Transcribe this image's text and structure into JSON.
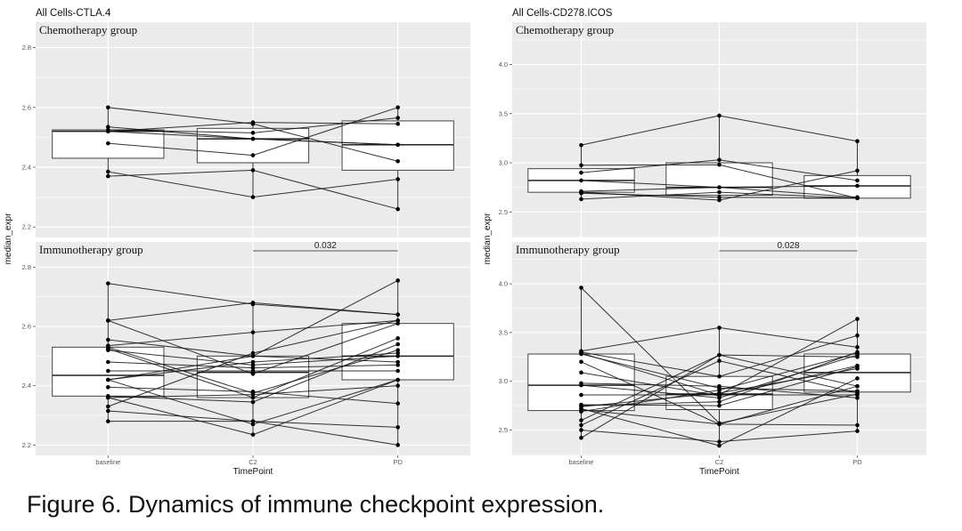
{
  "caption": "Figure 6. Dynamics of immune checkpoint expression.",
  "chart_data": [
    {
      "type": "boxplot-paired",
      "title": "All Cells-CTLA.4",
      "xlabel": "TimePoint",
      "ylabel": "median_expr",
      "categories": [
        "baseline",
        "C2",
        "PD"
      ],
      "yticks": [
        2.2,
        2.4,
        2.6,
        2.8
      ],
      "ylim": [
        2.165,
        2.885
      ],
      "grid": true,
      "facets": [
        {
          "label": "Chemotherapy group",
          "boxes": [
            {
              "q1": 2.43,
              "median": 2.52,
              "q3": 2.525,
              "min": 2.37,
              "max": 2.6
            },
            {
              "q1": 2.415,
              "median": 2.495,
              "q3": 2.53,
              "min": 2.3,
              "max": 2.55
            },
            {
              "q1": 2.39,
              "median": 2.475,
              "q3": 2.555,
              "min": 2.26,
              "max": 2.6
            }
          ],
          "subjects": [
            [
              2.6,
              2.545,
              2.42
            ],
            [
              2.525,
              2.515,
              2.565
            ],
            [
              2.52,
              2.495,
              2.475
            ],
            [
              2.535,
              2.495,
              2.475
            ],
            [
              2.48,
              2.44,
              2.6
            ],
            [
              2.385,
              2.3,
              2.36
            ],
            [
              2.37,
              2.39,
              2.26
            ],
            [
              2.52,
              2.55,
              2.545
            ]
          ]
        },
        {
          "label": "Immunotherapy group",
          "pvalue": {
            "text": "0.032",
            "from": "C2",
            "to": "PD"
          },
          "boxes": [
            {
              "q1": 2.365,
              "median": 2.435,
              "q3": 2.53,
              "min": 2.28,
              "max": 2.745
            },
            {
              "q1": 2.36,
              "median": 2.445,
              "q3": 2.5,
              "min": 2.235,
              "max": 2.68
            },
            {
              "q1": 2.42,
              "median": 2.5,
              "q3": 2.61,
              "min": 2.2,
              "max": 2.755
            }
          ],
          "subjects": [
            [
              2.745,
              2.675,
              2.64
            ],
            [
              2.62,
              2.68,
              2.64
            ],
            [
              2.62,
              2.44,
              2.61
            ],
            [
              2.555,
              2.5,
              2.48
            ],
            [
              2.535,
              2.58,
              2.62
            ],
            [
              2.53,
              2.375,
              2.52
            ],
            [
              2.525,
              2.36,
              2.56
            ],
            [
              2.52,
              2.47,
              2.5
            ],
            [
              2.48,
              2.46,
              2.47
            ],
            [
              2.45,
              2.45,
              2.45
            ],
            [
              2.42,
              2.5,
              2.755
            ],
            [
              2.42,
              2.27,
              2.42
            ],
            [
              2.395,
              2.38,
              2.34
            ],
            [
              2.365,
              2.345,
              2.54
            ],
            [
              2.36,
              2.37,
              2.4
            ],
            [
              2.33,
              2.51,
              2.62
            ],
            [
              2.315,
              2.28,
              2.2
            ],
            [
              2.28,
              2.28,
              2.26
            ],
            [
              2.36,
              2.235,
              2.42
            ],
            [
              2.42,
              2.48,
              2.51
            ]
          ]
        }
      ]
    },
    {
      "type": "boxplot-paired",
      "title": "All Cells-CD278.ICOS",
      "xlabel": "TimePoint",
      "ylabel": "median_expr",
      "categories": [
        "baseline",
        "C2",
        "PD"
      ],
      "yticks": [
        2.5,
        3.0,
        3.5,
        4.0
      ],
      "ylim": [
        2.24,
        4.43
      ],
      "grid": true,
      "facets": [
        {
          "label": "Chemotherapy group",
          "boxes": [
            {
              "q1": 2.7,
              "median": 2.82,
              "q3": 2.94,
              "min": 2.63,
              "max": 3.18
            },
            {
              "q1": 2.67,
              "median": 2.75,
              "q3": 3.0,
              "min": 2.61,
              "max": 3.48
            },
            {
              "q1": 2.64,
              "median": 2.765,
              "q3": 2.87,
              "min": 2.63,
              "max": 3.22
            }
          ],
          "subjects": [
            [
              3.18,
              3.48,
              3.22
            ],
            [
              2.975,
              2.98,
              2.64
            ],
            [
              2.9,
              3.03,
              2.82
            ],
            [
              2.82,
              2.75,
              2.765
            ],
            [
              2.71,
              2.75,
              2.65
            ],
            [
              2.7,
              2.62,
              2.92
            ],
            [
              2.69,
              2.65,
              2.64
            ],
            [
              2.63,
              2.7,
              2.64
            ]
          ]
        },
        {
          "label": "Immunotherapy group",
          "pvalue": {
            "text": "0.028",
            "from": "C2",
            "to": "PD"
          },
          "boxes": [
            {
              "q1": 2.7,
              "median": 2.96,
              "q3": 3.28,
              "min": 2.42,
              "max": 3.96
            },
            {
              "q1": 2.71,
              "median": 2.87,
              "q3": 3.05,
              "min": 2.34,
              "max": 3.55
            },
            {
              "q1": 2.89,
              "median": 3.09,
              "q3": 3.28,
              "min": 2.49,
              "max": 3.64
            }
          ],
          "subjects": [
            [
              3.96,
              2.57,
              2.87
            ],
            [
              3.31,
              3.55,
              3.35
            ],
            [
              3.3,
              3.05,
              3.47
            ],
            [
              3.29,
              2.86,
              3.64
            ],
            [
              3.28,
              2.93,
              2.9
            ],
            [
              3.2,
              2.56,
              2.95
            ],
            [
              3.09,
              2.85,
              3.16
            ],
            [
              2.98,
              2.95,
              2.83
            ],
            [
              2.96,
              2.83,
              3.27
            ],
            [
              2.86,
              2.86,
              2.86
            ],
            [
              2.76,
              2.75,
              3.15
            ],
            [
              2.74,
              2.88,
              3.13
            ],
            [
              2.71,
              2.56,
              2.55
            ],
            [
              2.69,
              2.91,
              3.29
            ],
            [
              2.6,
              3.27,
              2.95
            ],
            [
              2.55,
              3.21,
              2.88
            ],
            [
              2.5,
              2.38,
              2.49
            ],
            [
              2.42,
              3.27,
              3.25
            ],
            [
              2.72,
              2.34,
              3.03
            ],
            [
              2.75,
              2.79,
              3.3
            ]
          ]
        }
      ]
    }
  ]
}
